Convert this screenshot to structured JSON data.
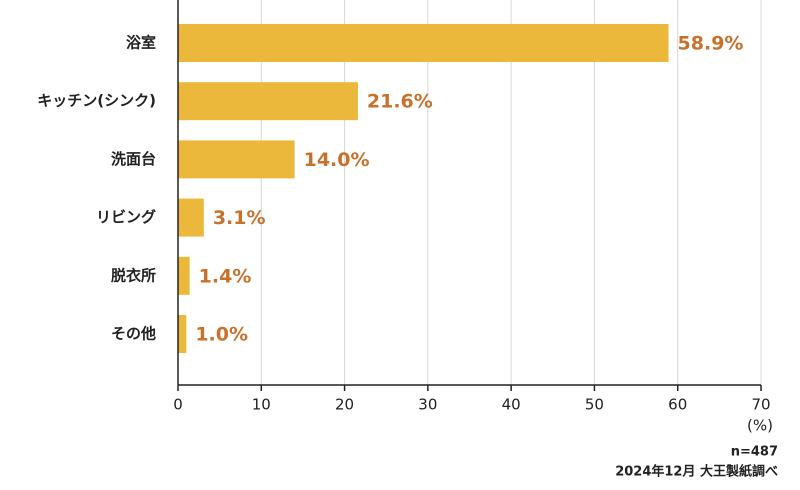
{
  "chart_data": {
    "type": "bar",
    "orientation": "horizontal",
    "categories": [
      "浴室",
      "キッチン(シンク)",
      "洗面台",
      "リビング",
      "脱衣所",
      "その他"
    ],
    "values": [
      58.9,
      21.6,
      14.0,
      3.1,
      1.4,
      1.0
    ],
    "value_labels": [
      "58.9%",
      "21.6%",
      "14.0%",
      "3.1%",
      "1.4%",
      "1.0%"
    ],
    "color": "#ecb83c",
    "label_color": "#c8712a",
    "xlim": [
      0,
      70
    ],
    "xticks": [
      0,
      10,
      20,
      30,
      40,
      50,
      60,
      70
    ],
    "grid": true,
    "x_label": "(%)",
    "annotations": [
      "n=487",
      "2024年12月 大王製紙調べ"
    ]
  }
}
